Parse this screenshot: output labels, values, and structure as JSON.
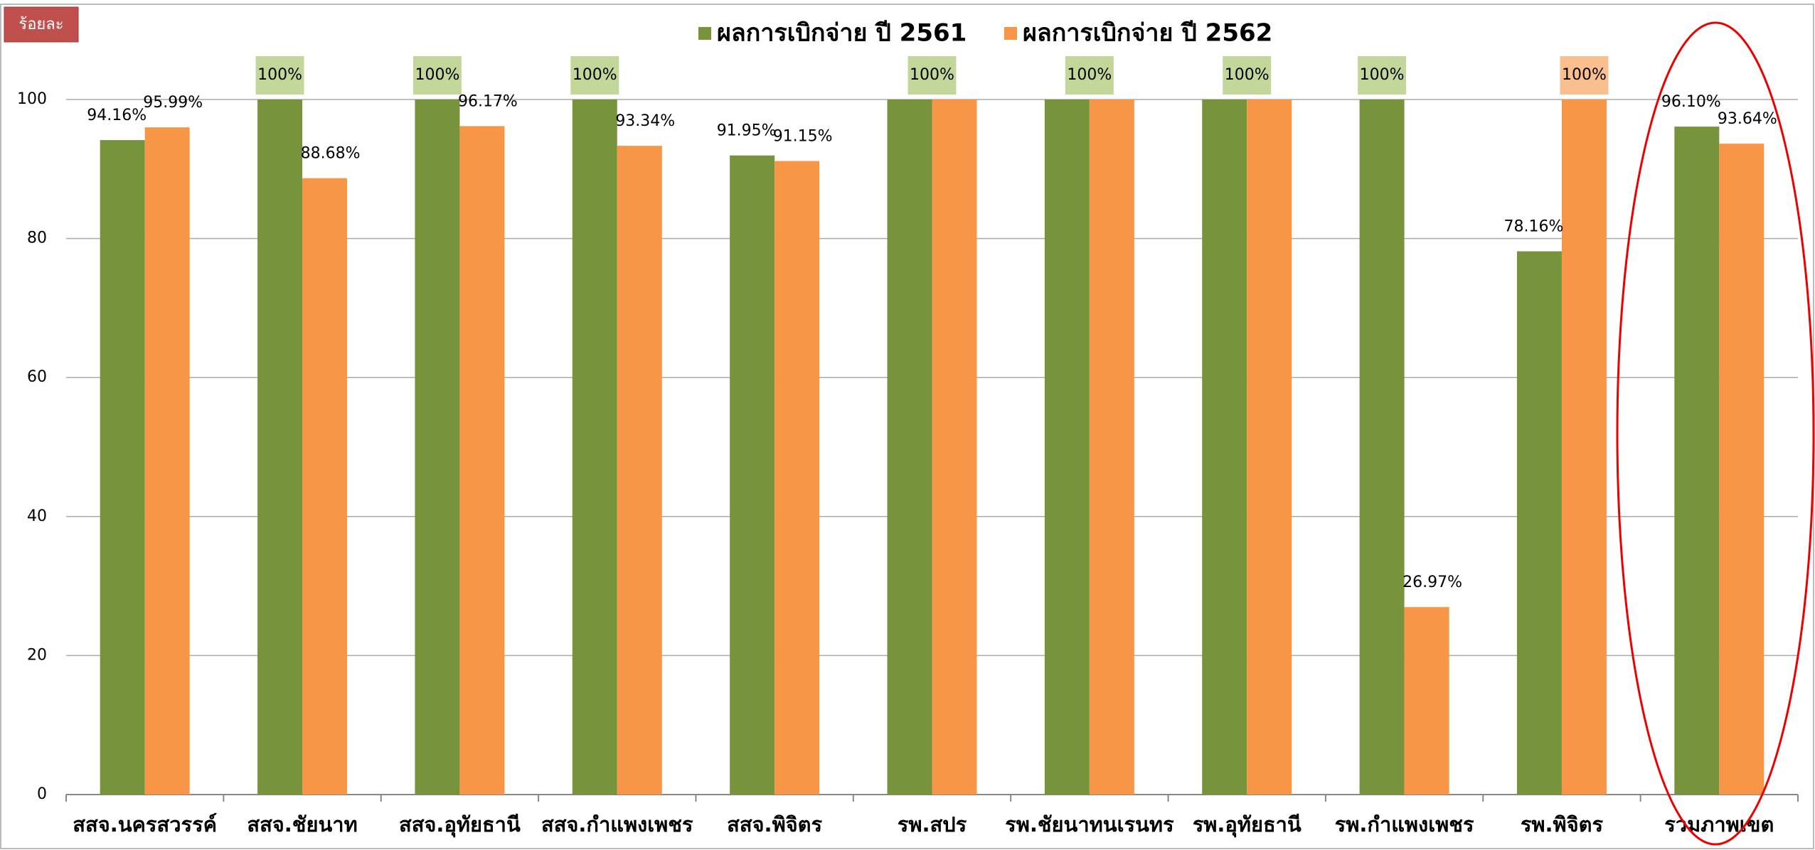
{
  "badge": "ร้อยละ",
  "chart_data": {
    "type": "bar",
    "categories": [
      "สสจ.นครสวรรค์",
      "สสจ.ชัยนาท",
      "สสจ.อุทัยธานี",
      "สสจ.กำแพงเพชร",
      "สสจ.พิจิตร",
      "รพ.สปร",
      "รพ.ชัยนาทนเรนทร",
      "รพ.อุทัยธานี",
      "รพ.กำแพงเพชร",
      "รพ.พิจิตร",
      "รวมภาพเขต"
    ],
    "series": [
      {
        "name": "ผลการเบิกจ่าย ปี 2561",
        "color": "#77933c",
        "label_box": "#c4d79b",
        "values": [
          94.16,
          100,
          100,
          100,
          91.95,
          100,
          100,
          100,
          100,
          78.16,
          96.1
        ],
        "value_labels": [
          "94.16%",
          "100%",
          "100%",
          "100%",
          "91.95%",
          "100%",
          "100%",
          "100%",
          "100%",
          "78.16%",
          "96.10%"
        ]
      },
      {
        "name": "ผลการเบิกจ่าย ปี 2562",
        "color": "#f79646",
        "label_box": "#fabf8f",
        "values": [
          95.99,
          88.68,
          96.17,
          93.34,
          91.15,
          100,
          100,
          100,
          26.97,
          100,
          93.64
        ],
        "value_labels": [
          "95.99%",
          "88.68%",
          "96.17%",
          "93.34%",
          "91.15%",
          null,
          null,
          null,
          "26.97%",
          "100%",
          "93.64%"
        ]
      }
    ],
    "ylim": [
      0,
      100
    ],
    "yticks": [
      0,
      20,
      40,
      60,
      80,
      100
    ],
    "grid": true,
    "legend": "top"
  }
}
